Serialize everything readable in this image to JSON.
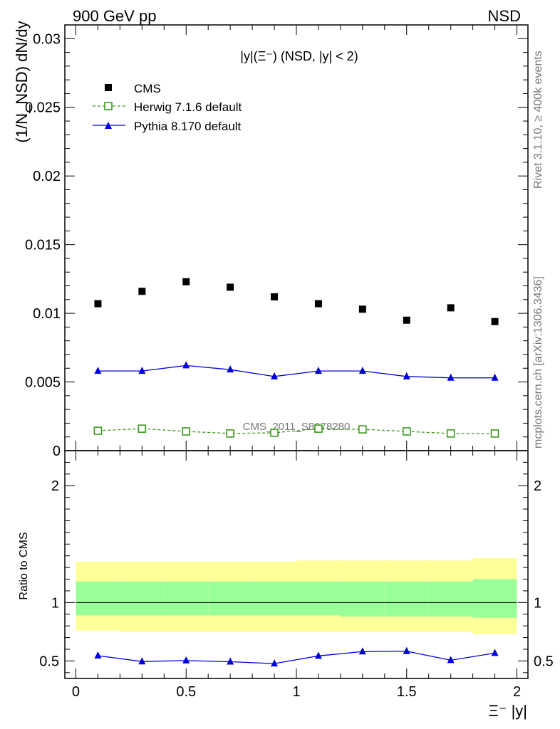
{
  "header": {
    "left": "900 GeV pp",
    "right": "NSD"
  },
  "side_labels": {
    "rivet": "Rivet 3.1.10, ≥ 400k events",
    "mcplots": "mcplots.cern.ch [arXiv:1306.3436]"
  },
  "watermark": "CMS_2011_S8978280",
  "colors": {
    "cms": "#000000",
    "herwig": "#3a9a1a",
    "pythia": "#0000dd",
    "band_outer": "#ffff99",
    "band_inner": "#99ff99"
  },
  "chart_data": [
    {
      "type": "scatter",
      "title": "|y|(Ξ⁻) (NSD, |y| < 2)",
      "ylabel": "(1/N_NSD) dN/dy",
      "xlim": [
        -0.05,
        2.05
      ],
      "ylim": [
        0,
        0.031
      ],
      "yticks": [
        0,
        0.005,
        0.01,
        0.015,
        0.02,
        0.025,
        0.03
      ],
      "ytick_labels": [
        "0",
        "0.005",
        "0.01",
        "0.015",
        "0.02",
        "0.025",
        "0.03"
      ],
      "x": [
        0.1,
        0.3,
        0.5,
        0.7,
        0.9,
        1.1,
        1.3,
        1.5,
        1.7,
        1.9
      ],
      "series": [
        {
          "name": "CMS",
          "style": "square",
          "color": "#000000",
          "values": [
            0.0107,
            0.0116,
            0.0123,
            0.0119,
            0.0112,
            0.0107,
            0.0103,
            0.0095,
            0.0104,
            0.0094
          ]
        },
        {
          "name": "Herwig 7.1.6 default",
          "style": "open-square-dashed",
          "color": "#3a9a1a",
          "values": [
            0.00145,
            0.0016,
            0.0014,
            0.00125,
            0.0013,
            0.0016,
            0.00155,
            0.0014,
            0.00125,
            0.00125
          ]
        },
        {
          "name": "Pythia 8.170 default",
          "style": "triangle-line",
          "color": "#0000dd",
          "values": [
            0.0058,
            0.0058,
            0.0062,
            0.0059,
            0.0054,
            0.0058,
            0.0058,
            0.0054,
            0.0053,
            0.0053
          ]
        }
      ]
    },
    {
      "type": "line",
      "ylabel": "Ratio to CMS",
      "xlabel": "Ξ⁻ |y|",
      "xlim": [
        -0.05,
        2.05
      ],
      "ylim": [
        0.35,
        2.3
      ],
      "xticks": [
        0,
        0.5,
        1,
        1.5,
        2
      ],
      "xtick_labels": [
        "0",
        "0.5",
        "1",
        "1.5",
        "2"
      ],
      "yticks": [
        0.5,
        1,
        2
      ],
      "ytick_labels": [
        "0.5",
        "1",
        "2"
      ],
      "bands": {
        "edges": [
          0,
          0.2,
          0.4,
          0.6,
          0.8,
          1.0,
          1.2,
          1.4,
          1.6,
          1.8,
          2.0
        ],
        "outer_low": [
          0.76,
          0.75,
          0.75,
          0.75,
          0.75,
          0.75,
          0.75,
          0.75,
          0.75,
          0.73
        ],
        "outer_high": [
          1.35,
          1.35,
          1.35,
          1.35,
          1.35,
          1.36,
          1.36,
          1.36,
          1.36,
          1.38
        ],
        "inner_low": [
          0.89,
          0.89,
          0.89,
          0.89,
          0.89,
          0.89,
          0.88,
          0.88,
          0.88,
          0.87
        ],
        "inner_high": [
          1.18,
          1.18,
          1.18,
          1.18,
          1.18,
          1.18,
          1.18,
          1.18,
          1.18,
          1.2
        ]
      },
      "x": [
        0.1,
        0.3,
        0.5,
        0.7,
        0.9,
        1.1,
        1.3,
        1.5,
        1.7,
        1.9
      ],
      "series": [
        {
          "name": "Pythia 8.170 default / CMS",
          "color": "#0000dd",
          "values": [
            0.545,
            0.495,
            0.503,
            0.493,
            0.477,
            0.543,
            0.58,
            0.583,
            0.506,
            0.567
          ],
          "errors": [
            0.02,
            0.02,
            0.02,
            0.02,
            0.02,
            0.02,
            0.02,
            0.02,
            0.02,
            0.02
          ]
        }
      ]
    }
  ]
}
